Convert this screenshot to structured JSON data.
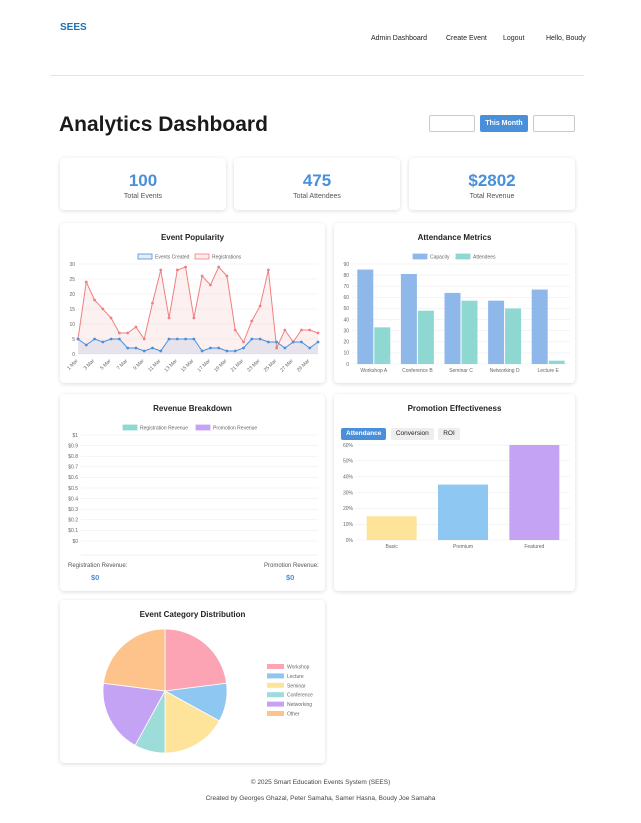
{
  "nav": {
    "brand": "SEES",
    "links": [
      "Admin Dashboard",
      "Create Event",
      "Logout"
    ],
    "greeting": "Hello, Boudy"
  },
  "page": {
    "title": "Analytics Dashboard",
    "range_active": "This Month"
  },
  "stats": [
    {
      "value": "100",
      "label": "Total Events"
    },
    {
      "value": "475",
      "label": "Total Attendees"
    },
    {
      "value": "$2802",
      "label": "Total Revenue"
    }
  ],
  "revenue_summary": {
    "registration_label": "Registration Revenue:",
    "registration_value": "$0",
    "promotion_label": "Promotion Revenue:",
    "promotion_value": "$0"
  },
  "promotion_tabs": [
    "Attendance",
    "Conversion",
    "ROI"
  ],
  "footer": {
    "copyright": "© 2025 Smart Education Events System (SEES)",
    "credits": "Created by Georges Ghazal, Peter Samaha, Samer Hasna, Boudy Joe Samaha"
  },
  "colors": {
    "accent": "#4a8fd9",
    "registrations": "#f08080",
    "events_created": "#4a8fd9",
    "capacity": "#8fb8ea",
    "attendees": "#8fd8d2",
    "promotion_revenue": "#c4a3f5"
  },
  "chart_data": [
    {
      "type": "line",
      "title": "Event Popularity",
      "x": [
        "1 Mar",
        "2 Mar",
        "3 Mar",
        "4 Mar",
        "5 Mar",
        "6 Mar",
        "7 Mar",
        "8 Mar",
        "9 Mar",
        "10 Mar",
        "11 Mar",
        "12 Mar",
        "13 Mar",
        "14 Mar",
        "15 Mar",
        "16 Mar",
        "17 Mar",
        "18 Mar",
        "19 Mar",
        "20 Mar",
        "21 Mar",
        "22 Mar",
        "23 Mar",
        "24 Mar",
        "25 Mar",
        "26 Mar",
        "27 Mar",
        "28 Mar",
        "29 Mar",
        "30 Mar"
      ],
      "tick_labels": [
        "1 Mar",
        "3 Mar",
        "5 Mar",
        "7 Mar",
        "9 Mar",
        "11 Mar",
        "13 Mar",
        "15 Mar",
        "17 Mar",
        "19 Mar",
        "21 Mar",
        "23 Mar",
        "25 Mar",
        "27 Mar",
        "29 Mar"
      ],
      "series": [
        {
          "name": "Events Created",
          "values": [
            5,
            3,
            5,
            4,
            5,
            5,
            2,
            2,
            1,
            2,
            1,
            5,
            5,
            5,
            5,
            1,
            2,
            2,
            1,
            1,
            2,
            5,
            5,
            4,
            4,
            2,
            4,
            4,
            2,
            4
          ]
        },
        {
          "name": "Registrations",
          "values": [
            5,
            24,
            18,
            15,
            12,
            7,
            7,
            9,
            5,
            17,
            28,
            12,
            28,
            29,
            12,
            26,
            23,
            29,
            26,
            8,
            4,
            11,
            16,
            28,
            2,
            8,
            4,
            8,
            8,
            7
          ]
        }
      ],
      "ylim": [
        0,
        30
      ],
      "yticks": [
        0,
        5,
        10,
        15,
        20,
        25,
        30
      ],
      "legend": "top"
    },
    {
      "type": "bar",
      "title": "Attendance Metrics",
      "categories": [
        "Workshop A",
        "Conference B",
        "Seminar C",
        "Networking D",
        "Lecture E"
      ],
      "series": [
        {
          "name": "Capacity",
          "values": [
            85,
            81,
            64,
            57,
            67
          ]
        },
        {
          "name": "Attendees",
          "values": [
            33,
            48,
            57,
            50,
            3
          ]
        }
      ],
      "ylim": [
        0,
        90
      ],
      "yticks": [
        0,
        10,
        20,
        30,
        40,
        50,
        60,
        70,
        80,
        90
      ],
      "legend": "top"
    },
    {
      "type": "line",
      "title": "Revenue Breakdown",
      "series": [
        {
          "name": "Registration Revenue",
          "values": []
        },
        {
          "name": "Promotion Revenue",
          "values": []
        }
      ],
      "ytick_labels": [
        "$0",
        "$0.1",
        "$0.2",
        "$0.3",
        "$0.4",
        "$0.5",
        "$0.6",
        "$0.7",
        "$0.8",
        "$0.9",
        "$1"
      ],
      "ylim": [
        0,
        1
      ],
      "legend": "top"
    },
    {
      "type": "bar",
      "title": "Promotion Effectiveness",
      "categories": [
        "Basic",
        "Premium",
        "Featured"
      ],
      "values": [
        15,
        35,
        60
      ],
      "colors": [
        "#fde49a",
        "#8ec7f2",
        "#c4a3f5"
      ],
      "ytick_labels": [
        "0%",
        "10%",
        "20%",
        "30%",
        "40%",
        "50%",
        "60%"
      ],
      "ylim": [
        0,
        60
      ]
    },
    {
      "type": "pie",
      "title": "Event Category Distribution",
      "categories": [
        "Workshop",
        "Lecture",
        "Seminar",
        "Conference",
        "Networking",
        "Other"
      ],
      "values": [
        23,
        10,
        17,
        8,
        19,
        23
      ],
      "colors": [
        "#fda4b4",
        "#8ec7f2",
        "#fde49a",
        "#9ddcd8",
        "#c4a3f5",
        "#fdc38a"
      ],
      "legend": "right"
    }
  ]
}
